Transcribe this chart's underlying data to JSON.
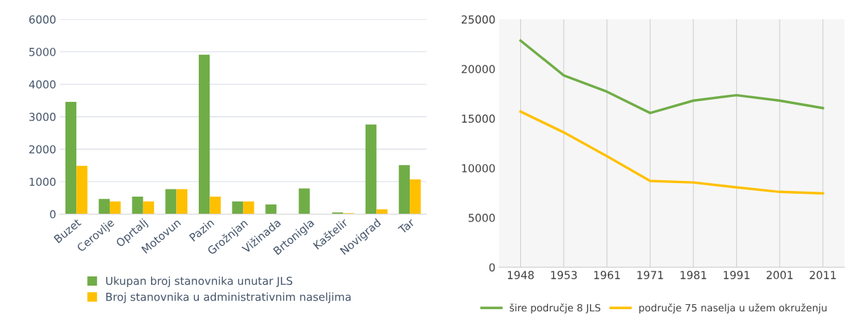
{
  "chart_data": [
    {
      "type": "bar",
      "categories": [
        "Buzet",
        "Cerovlje",
        "Oprtalj",
        "Motovun",
        "Pazin",
        "Grožnjan",
        "Vižinada",
        "Brtonigla",
        "Kaštelir",
        "Novigrad",
        "Tar"
      ],
      "series": [
        {
          "name": "Ukupan broj stanovnika unutar JLS",
          "color": "#70ad47",
          "values": [
            3460,
            470,
            540,
            770,
            4910,
            390,
            300,
            790,
            50,
            2760,
            1510
          ]
        },
        {
          "name": "Broj stanovnika u administrativnim naseljima",
          "color": "#ffc000",
          "values": [
            1490,
            390,
            390,
            770,
            540,
            390,
            null,
            null,
            30,
            150,
            1070
          ]
        }
      ],
      "ylim": [
        0,
        6000
      ],
      "yticks": [
        0,
        1000,
        2000,
        3000,
        4000,
        5000,
        6000
      ],
      "grid": "y",
      "legend": "bottom"
    },
    {
      "type": "line",
      "categories": [
        "1948",
        "1953",
        "1961",
        "1971",
        "1981",
        "1991",
        "2001",
        "2011"
      ],
      "series": [
        {
          "name": "šire područje 8 JLS",
          "color": "#70ad47",
          "values": [
            22850,
            19350,
            17700,
            15550,
            16800,
            17350,
            16800,
            16050
          ]
        },
        {
          "name": "područje 75 naselja u užem okruženju",
          "color": "#ffc000",
          "values": [
            15700,
            13600,
            11200,
            8700,
            8550,
            8050,
            7600,
            7450
          ]
        }
      ],
      "ylim": [
        0,
        25000
      ],
      "yticks": [
        0,
        5000,
        10000,
        15000,
        20000,
        25000
      ],
      "grid": "x",
      "legend": "bottom"
    }
  ]
}
